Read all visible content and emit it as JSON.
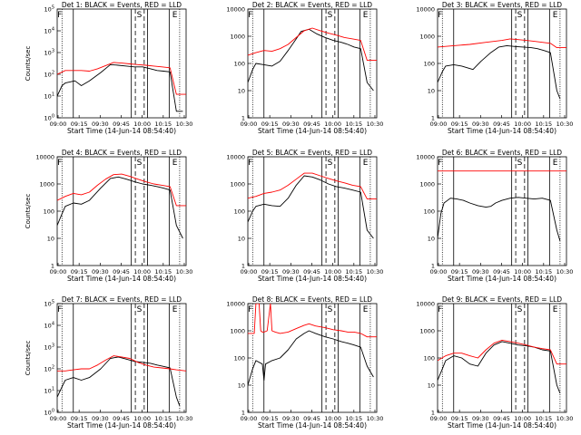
{
  "colors": {
    "events": "#000000",
    "lld": "#ff0000",
    "axis": "#000000",
    "background": "#ffffff"
  },
  "chart_data": [
    {
      "type": "line",
      "title": "Det 1: BLACK = Events, RED = LLD",
      "xlabel": "Start Time (14-Jun-14 08:54:40)",
      "ylabel": "Counts/sec",
      "yscale": "log",
      "xticks": [
        "09:00",
        "09:15",
        "09:30",
        "09:45",
        "10:00",
        "10:15",
        "10:30"
      ],
      "yticks": [
        "10^0",
        "10^1",
        "10^2",
        "10^3",
        "10^4",
        "10^5"
      ],
      "ylim": [
        1,
        100000
      ],
      "region_labels": [
        "F",
        "S",
        "E"
      ],
      "series": [
        {
          "name": "Events",
          "x": [
            0,
            3,
            5,
            11,
            15,
            20,
            27,
            33,
            38,
            43,
            48,
            53,
            58,
            62,
            66,
            70,
            74,
            78
          ],
          "y": [
            10,
            30,
            40,
            50,
            30,
            50,
            120,
            280,
            260,
            240,
            220,
            220,
            180,
            150,
            140,
            130,
            2,
            2
          ]
        },
        {
          "name": "LLD",
          "x": [
            0,
            5,
            10,
            15,
            20,
            25,
            30,
            35,
            40,
            45,
            50,
            55,
            60,
            65,
            70,
            74,
            80
          ],
          "y": [
            100,
            150,
            150,
            150,
            140,
            180,
            250,
            350,
            330,
            300,
            280,
            260,
            240,
            220,
            200,
            12,
            12
          ]
        }
      ]
    },
    {
      "type": "line",
      "title": "Det 2: BLACK = Events, RED = LLD",
      "xlabel": "Start Time (14-Jun-14 08:54:40)",
      "ylabel": "",
      "yscale": "log",
      "xticks": [
        "09:00",
        "09:15",
        "09:30",
        "09:45",
        "10:00",
        "10:15",
        "10:30"
      ],
      "yticks": [
        "1",
        "10",
        "100",
        "1000",
        "10000"
      ],
      "ylim": [
        1,
        10000
      ],
      "region_labels": [
        "F",
        "S",
        "E"
      ],
      "series": [
        {
          "name": "Events",
          "x": [
            0,
            3,
            5,
            10,
            15,
            20,
            25,
            30,
            33,
            38,
            43,
            48,
            53,
            58,
            62,
            66,
            70,
            74,
            78
          ],
          "y": [
            20,
            60,
            100,
            90,
            80,
            120,
            300,
            800,
            1500,
            1800,
            1200,
            900,
            700,
            600,
            500,
            400,
            350,
            20,
            10
          ]
        },
        {
          "name": "LLD",
          "x": [
            0,
            5,
            10,
            15,
            20,
            25,
            30,
            35,
            40,
            45,
            50,
            55,
            60,
            65,
            70,
            74,
            80
          ],
          "y": [
            200,
            250,
            300,
            280,
            350,
            500,
            900,
            1600,
            2000,
            1600,
            1300,
            1100,
            900,
            800,
            700,
            130,
            130
          ]
        }
      ]
    },
    {
      "type": "line",
      "title": "Det 3: BLACK = Events, RED = LLD",
      "xlabel": "Start Time (14-Jun-14 08:54:40)",
      "ylabel": "",
      "yscale": "log",
      "xticks": [
        "09:00",
        "09:15",
        "09:30",
        "09:45",
        "10:00",
        "10:15",
        "10:30"
      ],
      "yticks": [
        "1",
        "10",
        "100",
        "1000",
        "10000"
      ],
      "ylim": [
        1,
        10000
      ],
      "region_labels": [
        "F",
        "S",
        "E"
      ],
      "series": [
        {
          "name": "Events",
          "x": [
            0,
            3,
            5,
            10,
            15,
            18,
            22,
            27,
            33,
            38,
            43,
            48,
            53,
            58,
            62,
            66,
            70,
            74,
            76
          ],
          "y": [
            20,
            50,
            80,
            90,
            80,
            70,
            60,
            120,
            250,
            400,
            450,
            420,
            400,
            380,
            350,
            300,
            250,
            10,
            5
          ]
        },
        {
          "name": "LLD",
          "x": [
            0,
            10,
            20,
            30,
            40,
            45,
            50,
            55,
            60,
            65,
            70,
            74,
            80
          ],
          "y": [
            400,
            450,
            500,
            600,
            700,
            800,
            750,
            700,
            650,
            600,
            550,
            380,
            380
          ]
        }
      ]
    },
    {
      "type": "line",
      "title": "Det 4: BLACK = Events, RED = LLD",
      "xlabel": "Start Time (14-Jun-14 08:54:40)",
      "ylabel": "Counts/sec",
      "yscale": "log",
      "xticks": [
        "09:00",
        "09:15",
        "09:30",
        "09:45",
        "10:00",
        "10:15",
        "10:30"
      ],
      "yticks": [
        "1",
        "10",
        "100",
        "1000",
        "10000"
      ],
      "ylim": [
        1,
        10000
      ],
      "region_labels": [
        "F",
        "S",
        "E"
      ],
      "series": [
        {
          "name": "Events",
          "x": [
            0,
            3,
            5,
            10,
            15,
            20,
            27,
            33,
            38,
            43,
            48,
            53,
            58,
            62,
            66,
            70,
            74,
            78
          ],
          "y": [
            30,
            80,
            150,
            200,
            180,
            250,
            700,
            1600,
            1800,
            1500,
            1200,
            1000,
            900,
            800,
            700,
            600,
            30,
            10
          ]
        },
        {
          "name": "LLD",
          "x": [
            0,
            5,
            10,
            15,
            20,
            25,
            30,
            35,
            40,
            45,
            50,
            55,
            60,
            65,
            70,
            74,
            80
          ],
          "y": [
            250,
            350,
            450,
            400,
            500,
            900,
            1500,
            2200,
            2300,
            1900,
            1500,
            1200,
            1000,
            900,
            800,
            160,
            160
          ]
        }
      ]
    },
    {
      "type": "line",
      "title": "Det 5: BLACK = Events, RED = LLD",
      "xlabel": "Start Time (14-Jun-14 08:54:40)",
      "ylabel": "",
      "yscale": "log",
      "xticks": [
        "09:00",
        "09:15",
        "09:30",
        "09:45",
        "10:00",
        "10:15",
        "10:30"
      ],
      "yticks": [
        "1",
        "10",
        "100",
        "1000",
        "10000"
      ],
      "ylim": [
        1,
        10000
      ],
      "region_labels": [
        "F",
        "S",
        "E"
      ],
      "series": [
        {
          "name": "Events",
          "x": [
            0,
            3,
            5,
            10,
            15,
            20,
            25,
            30,
            35,
            40,
            45,
            50,
            55,
            60,
            65,
            70,
            74,
            78
          ],
          "y": [
            40,
            100,
            150,
            180,
            160,
            150,
            300,
            900,
            2000,
            1800,
            1400,
            1000,
            800,
            700,
            600,
            500,
            20,
            10
          ]
        },
        {
          "name": "LLD",
          "x": [
            0,
            5,
            10,
            15,
            20,
            25,
            30,
            35,
            40,
            45,
            50,
            55,
            60,
            65,
            70,
            74,
            80
          ],
          "y": [
            300,
            350,
            450,
            500,
            600,
            900,
            1500,
            2500,
            2500,
            2000,
            1600,
            1300,
            1100,
            900,
            800,
            280,
            280
          ]
        }
      ]
    },
    {
      "type": "line",
      "title": "Det 6: BLACK = Events, RED = LLD",
      "xlabel": "Start Time (14-Jun-14 08:54:40)",
      "ylabel": "",
      "yscale": "log",
      "xticks": [
        "09:00",
        "09:15",
        "09:30",
        "09:45",
        "10:00",
        "10:15",
        "10:30"
      ],
      "yticks": [
        "1",
        "10",
        "100",
        "1000",
        "10000"
      ],
      "ylim": [
        1,
        10000
      ],
      "region_labels": [
        "F",
        "S",
        "E"
      ],
      "series": [
        {
          "name": "Events",
          "x": [
            0,
            2,
            4,
            8,
            12,
            16,
            20,
            25,
            30,
            33,
            36,
            40,
            45,
            50,
            55,
            60,
            65,
            70,
            74,
            76
          ],
          "y": [
            10,
            80,
            200,
            300,
            280,
            250,
            200,
            160,
            140,
            150,
            200,
            250,
            300,
            320,
            300,
            280,
            300,
            250,
            20,
            8
          ]
        },
        {
          "name": "LLD",
          "x": [
            0,
            80
          ],
          "y": [
            3000,
            3000
          ]
        }
      ]
    },
    {
      "type": "line",
      "title": "Det 7: BLACK = Events, RED = LLD",
      "xlabel": "Start Time (14-Jun-14 08:54:40)",
      "ylabel": "Counts/sec",
      "yscale": "log",
      "xticks": [
        "09:00",
        "09:15",
        "09:30",
        "09:45",
        "10:00",
        "10:15",
        "10:30"
      ],
      "yticks": [
        "10^0",
        "10^1",
        "10^2",
        "10^3",
        "10^4",
        "10^5"
      ],
      "ylim": [
        1,
        100000
      ],
      "region_labels": [
        "F",
        "S",
        "E"
      ],
      "series": [
        {
          "name": "Events",
          "x": [
            0,
            3,
            5,
            10,
            15,
            20,
            27,
            33,
            38,
            43,
            48,
            53,
            58,
            62,
            66,
            70,
            74,
            76
          ],
          "y": [
            5,
            15,
            30,
            40,
            30,
            40,
            100,
            300,
            350,
            280,
            220,
            200,
            180,
            150,
            130,
            110,
            5,
            2
          ]
        },
        {
          "name": "LLD",
          "x": [
            0,
            5,
            10,
            15,
            20,
            25,
            30,
            35,
            40,
            45,
            50,
            55,
            60,
            65,
            70,
            74,
            80
          ],
          "y": [
            80,
            80,
            90,
            100,
            100,
            150,
            250,
            400,
            350,
            300,
            200,
            150,
            120,
            110,
            100,
            90,
            80
          ]
        }
      ]
    },
    {
      "type": "line",
      "title": "Det 8: BLACK = Events, RED = LLD",
      "xlabel": "Start Time (14-Jun-14 08:54:40)",
      "ylabel": "",
      "yscale": "log",
      "xticks": [
        "09:00",
        "09:15",
        "09:30",
        "09:45",
        "10:00",
        "10:15",
        "10:30"
      ],
      "yticks": [
        "1",
        "10",
        "100",
        "1000",
        "10000"
      ],
      "ylim": [
        1,
        10000
      ],
      "region_labels": [
        "F",
        "S",
        "E"
      ],
      "series": [
        {
          "name": "Events",
          "x": [
            0,
            3,
            5,
            9,
            10,
            11,
            15,
            20,
            25,
            30,
            35,
            38,
            42,
            48,
            53,
            58,
            62,
            66,
            70,
            74,
            78
          ],
          "y": [
            10,
            40,
            80,
            60,
            15,
            60,
            80,
            100,
            200,
            500,
            800,
            1000,
            800,
            600,
            500,
            400,
            350,
            300,
            250,
            50,
            20
          ]
        },
        {
          "name": "LLD",
          "x": [
            0,
            4,
            5,
            7,
            8,
            9,
            10,
            12,
            14,
            15,
            17,
            20,
            25,
            30,
            35,
            38,
            42,
            48,
            53,
            58,
            62,
            66,
            70,
            74,
            80
          ],
          "y": [
            800,
            800,
            10000,
            10000,
            1000,
            900,
            900,
            1000,
            10000,
            1000,
            900,
            800,
            900,
            1200,
            1600,
            1800,
            1500,
            1300,
            1100,
            1000,
            900,
            900,
            800,
            600,
            600
          ]
        }
      ]
    },
    {
      "type": "line",
      "title": "Det 9: BLACK = Events, RED = LLD",
      "xlabel": "Start Time (14-Jun-14 08:54:40)",
      "ylabel": "",
      "yscale": "log",
      "xticks": [
        "09:00",
        "09:15",
        "09:30",
        "09:45",
        "10:00",
        "10:15",
        "10:30"
      ],
      "yticks": [
        "1",
        "10",
        "100",
        "1000",
        "10000"
      ],
      "ylim": [
        1,
        10000
      ],
      "region_labels": [
        "F",
        "S",
        "E"
      ],
      "series": [
        {
          "name": "Events",
          "x": [
            0,
            3,
            5,
            10,
            15,
            20,
            25,
            30,
            35,
            40,
            45,
            50,
            55,
            60,
            65,
            70,
            74,
            76
          ],
          "y": [
            15,
            40,
            80,
            120,
            100,
            60,
            50,
            150,
            300,
            400,
            350,
            300,
            280,
            250,
            200,
            180,
            10,
            5
          ]
        },
        {
          "name": "LLD",
          "x": [
            0,
            5,
            10,
            15,
            20,
            25,
            30,
            35,
            40,
            45,
            50,
            55,
            60,
            65,
            70,
            74,
            80
          ],
          "y": [
            80,
            120,
            150,
            150,
            120,
            100,
            200,
            350,
            450,
            400,
            350,
            300,
            250,
            220,
            200,
            60,
            60
          ]
        }
      ]
    }
  ]
}
